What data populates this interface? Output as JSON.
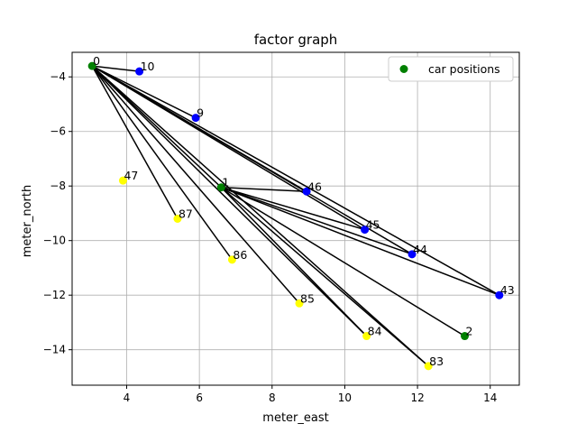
{
  "chart_data": {
    "type": "scatter",
    "title": "factor graph",
    "xlabel": "meter_east",
    "ylabel": "meter_north",
    "xlim": [
      2.5,
      14.8
    ],
    "ylim": [
      -15.3,
      -3.1
    ],
    "xticks": [
      4,
      6,
      8,
      10,
      12,
      14
    ],
    "yticks": [
      -4,
      -6,
      -8,
      -10,
      -12,
      -14
    ],
    "grid": true,
    "legend": {
      "position": "top-right",
      "entries": [
        {
          "label": "car positions",
          "color": "#008000"
        }
      ]
    },
    "colors": {
      "car": "#008000",
      "landmark": "#0000ff",
      "other": "#ffff00",
      "edge": "#000000"
    },
    "nodes": [
      {
        "id": "0",
        "x": 3.05,
        "y": -3.6,
        "kind": "car"
      },
      {
        "id": "1",
        "x": 6.6,
        "y": -8.05,
        "kind": "car"
      },
      {
        "id": "2",
        "x": 13.3,
        "y": -13.5,
        "kind": "car"
      },
      {
        "id": "10",
        "x": 4.35,
        "y": -3.8,
        "kind": "landmark"
      },
      {
        "id": "9",
        "x": 5.9,
        "y": -5.5,
        "kind": "landmark"
      },
      {
        "id": "46",
        "x": 8.95,
        "y": -8.2,
        "kind": "landmark"
      },
      {
        "id": "45",
        "x": 10.55,
        "y": -9.6,
        "kind": "landmark"
      },
      {
        "id": "44",
        "x": 11.85,
        "y": -10.5,
        "kind": "landmark"
      },
      {
        "id": "43",
        "x": 14.25,
        "y": -12.0,
        "kind": "landmark"
      },
      {
        "id": "47",
        "x": 3.9,
        "y": -7.8,
        "kind": "other"
      },
      {
        "id": "87",
        "x": 5.4,
        "y": -9.2,
        "kind": "other"
      },
      {
        "id": "86",
        "x": 6.9,
        "y": -10.7,
        "kind": "other"
      },
      {
        "id": "85",
        "x": 8.75,
        "y": -12.3,
        "kind": "other"
      },
      {
        "id": "84",
        "x": 10.6,
        "y": -13.5,
        "kind": "other"
      },
      {
        "id": "83",
        "x": 12.3,
        "y": -14.6,
        "kind": "other"
      }
    ],
    "edges": [
      [
        "0",
        "10"
      ],
      [
        "0",
        "9"
      ],
      [
        "0",
        "46"
      ],
      [
        "0",
        "45"
      ],
      [
        "0",
        "44"
      ],
      [
        "0",
        "43"
      ],
      [
        "0",
        "1"
      ],
      [
        "0",
        "87"
      ],
      [
        "0",
        "86"
      ],
      [
        "0",
        "85"
      ],
      [
        "0",
        "84"
      ],
      [
        "0",
        "83"
      ],
      [
        "1",
        "46"
      ],
      [
        "1",
        "45"
      ],
      [
        "1",
        "44"
      ],
      [
        "1",
        "43"
      ],
      [
        "1",
        "2"
      ],
      [
        "1",
        "84"
      ],
      [
        "1",
        "83"
      ]
    ]
  }
}
